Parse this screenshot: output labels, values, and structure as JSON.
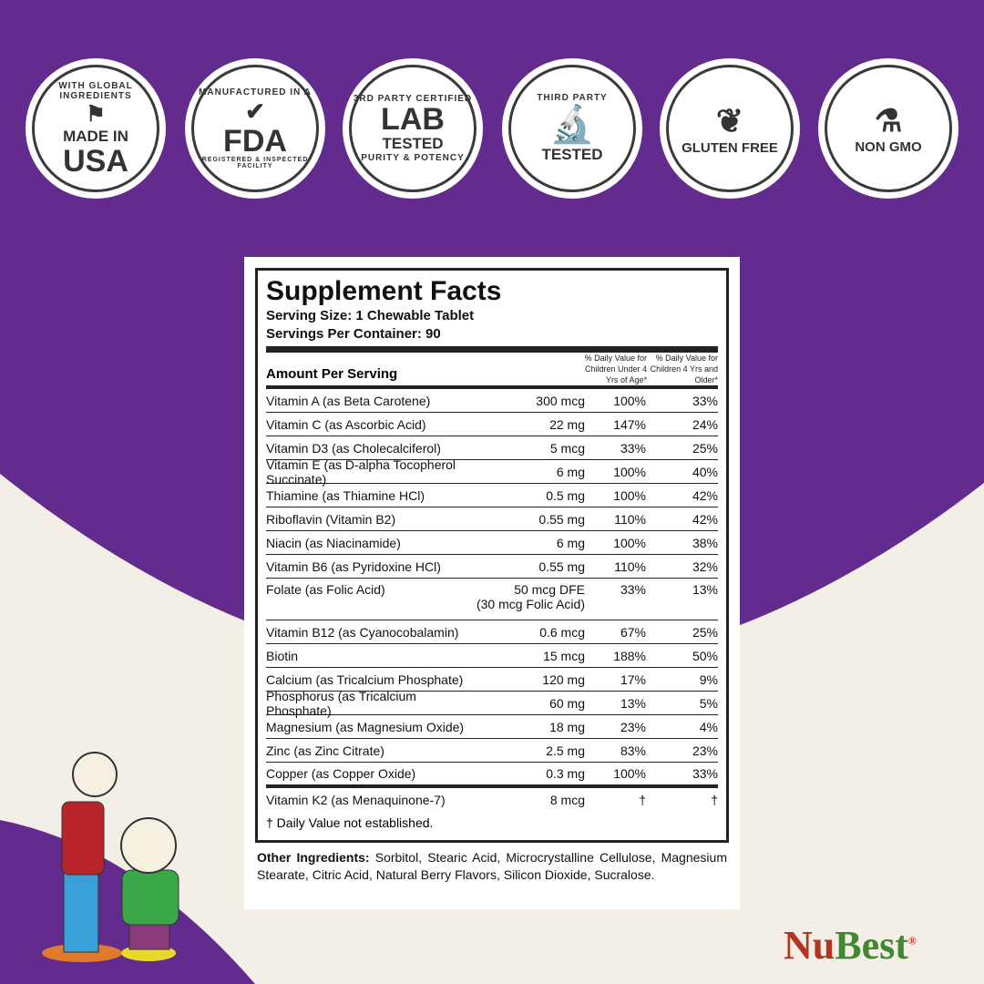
{
  "badges": [
    {
      "top": "WITH GLOBAL INGREDIENTS",
      "main": "MADE IN",
      "main2": "USA",
      "icon": "us-flag-icon"
    },
    {
      "top": "MANUFACTURED IN A",
      "main": "FDA",
      "bottom": "REGISTERED & INSPECTED FACILITY",
      "icon": "checkmark-icon"
    },
    {
      "top": "3RD PARTY CERTIFIED",
      "main": "LAB",
      "main2": "TESTED",
      "bottom": "PURITY & POTENCY"
    },
    {
      "top": "THIRD PARTY",
      "bottom": "TESTED",
      "icon": "microscope-icon"
    },
    {
      "main": "GLUTEN FREE",
      "icon": "wheat-icon"
    },
    {
      "main": "NON GMO",
      "icon": "flask-icon"
    }
  ],
  "facts": {
    "title": "Supplement Facts",
    "serving_size": "Serving Size: 1 Chewable Tablet",
    "servings": "Servings Per Container: 90",
    "amount_header": "Amount Per Serving",
    "dv_under4": "% Daily Value for Children Under 4 Yrs of Age*",
    "dv_4plus": "% Daily Value for Children 4 Yrs and Older*",
    "rows": [
      {
        "name": "Vitamin A (as Beta Carotene)",
        "amount": "300 mcg",
        "dv1": "100%",
        "dv2": "33%"
      },
      {
        "name": "Vitamin C (as Ascorbic Acid)",
        "amount": "22 mg",
        "dv1": "147%",
        "dv2": "24%"
      },
      {
        "name": "Vitamin D3 (as Cholecalciferol)",
        "amount": "5 mcg",
        "dv1": "33%",
        "dv2": "25%"
      },
      {
        "name": "Vitamin E (as D-alpha Tocopherol Succinate)",
        "amount": "6 mg",
        "dv1": "100%",
        "dv2": "40%"
      },
      {
        "name": "Thiamine (as Thiamine HCl)",
        "amount": "0.5 mg",
        "dv1": "100%",
        "dv2": "42%"
      },
      {
        "name": "Riboflavin (Vitamin B2)",
        "amount": "0.55 mg",
        "dv1": "110%",
        "dv2": "42%"
      },
      {
        "name": "Niacin (as Niacinamide)",
        "amount": "6 mg",
        "dv1": "100%",
        "dv2": "38%"
      },
      {
        "name": "Vitamin B6 (as Pyridoxine HCl)",
        "amount": "0.55 mg",
        "dv1": "110%",
        "dv2": "32%"
      },
      {
        "name": "Folate (as Folic Acid)",
        "amount": "50 mcg DFE",
        "amount2": "(30 mcg Folic Acid)",
        "dv1": "33%",
        "dv2": "13%"
      },
      {
        "name": "Vitamin B12 (as Cyanocobalamin)",
        "amount": "0.6 mcg",
        "dv1": "67%",
        "dv2": "25%"
      },
      {
        "name": "Biotin",
        "amount": "15 mcg",
        "dv1": "188%",
        "dv2": "50%"
      },
      {
        "name": "Calcium (as Tricalcium Phosphate)",
        "amount": "120 mg",
        "dv1": "17%",
        "dv2": "9%"
      },
      {
        "name": "Phosphorus (as Tricalcium Phosphate)",
        "amount": "60 mg",
        "dv1": "13%",
        "dv2": "5%"
      },
      {
        "name": "Magnesium (as Magnesium Oxide)",
        "amount": "18 mg",
        "dv1": "23%",
        "dv2": "4%"
      },
      {
        "name": "Zinc (as Zinc Citrate)",
        "amount": "2.5 mg",
        "dv1": "83%",
        "dv2": "23%"
      },
      {
        "name": "Copper (as Copper Oxide)",
        "amount": "0.3 mg",
        "dv1": "100%",
        "dv2": "33%"
      },
      {
        "name": "Vitamin K2 (as Menaquinone-7)",
        "amount": "8 mcg",
        "dv1": "†",
        "dv2": "†"
      }
    ],
    "footnote": "† Daily Value not established.",
    "other_label": "Other Ingredients:",
    "other_text": " Sorbitol, Stearic Acid, Microcrystalline Cellulose, Magnesium Stearate, Citric Acid, Natural Berry Flavors, Silicon Dioxide, Sucralose."
  },
  "brand": {
    "part1": "Nu",
    "part2": "Best",
    "mark": "®"
  },
  "colors": {
    "purple": "#632b8d",
    "cream": "#f3efe6",
    "brand_red": "#b5331f",
    "brand_green": "#3f8a2e"
  }
}
